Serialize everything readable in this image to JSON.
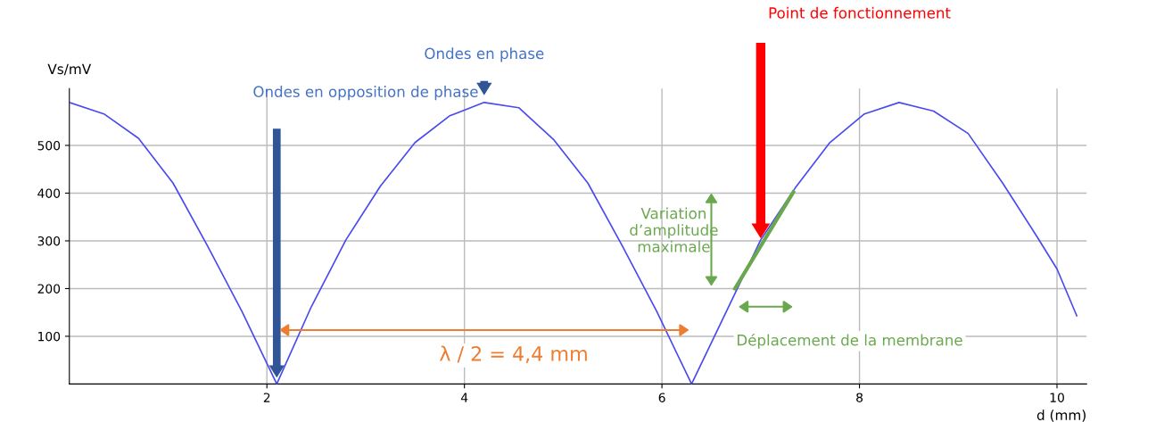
{
  "chart_data": {
    "type": "line",
    "xlabel": "d (mm)",
    "ylabel": "Vs/mV",
    "x": [
      0,
      0.35,
      0.7,
      1.05,
      1.4,
      1.75,
      2.1,
      2.45,
      2.8,
      3.15,
      3.5,
      3.85,
      4.2,
      4.55,
      4.9,
      5.25,
      5.6,
      5.95,
      6.3,
      6.65,
      7.0,
      7.35,
      7.7,
      8.05,
      8.4,
      8.75,
      9.1,
      9.45,
      9.8,
      10.0,
      10.2
    ],
    "series": [
      {
        "color": "#4a4af0",
        "values": [
          590,
          566,
          515,
          421,
          289,
          151,
          0,
          162,
          302,
          415,
          506,
          562,
          590,
          579,
          513,
          421,
          289,
          151,
          0,
          151,
          302,
          411,
          506,
          566,
          590,
          572,
          525,
          421,
          308,
          241,
          143
        ]
      },
      {
        "color": "#6aa84f",
        "x": [
          6.74,
          7.33
        ],
        "values": [
          200,
          402
        ]
      }
    ],
    "xlim": [
      0,
      10.3
    ],
    "ylim": [
      0,
      619
    ],
    "xticks": [
      2,
      4,
      6,
      8,
      10
    ],
    "yticks": [
      100,
      200,
      300,
      400,
      500
    ],
    "grid": true,
    "line_style": "solid",
    "annotations": [
      "Ondes en phase",
      "Ondes en opposition de phase",
      "Point de fonctionnement",
      "Variation d’amplitude maximale",
      "Déplacement de la membrane",
      "λ / 2 = 4,4 mm"
    ]
  }
}
